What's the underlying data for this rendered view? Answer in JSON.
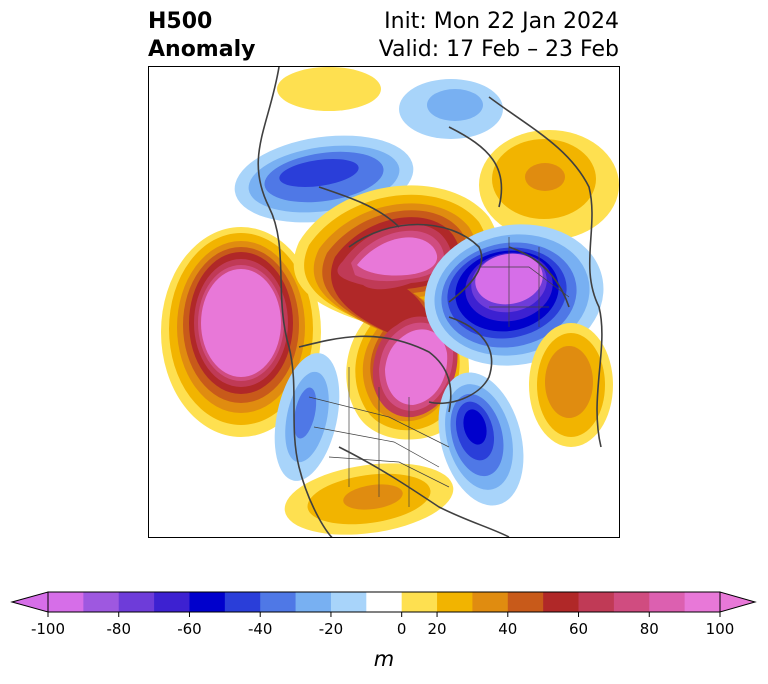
{
  "header": {
    "title_line1": "H500",
    "title_line2": "Anomaly",
    "init_text": "Init: Mon 22 Jan 2024",
    "valid_text": "Valid: 17 Feb – 23 Feb"
  },
  "map": {
    "projection": "polar-stereographic",
    "variable": "500 hPa geopotential height anomaly"
  },
  "colorbar": {
    "unit": "m",
    "ticks": [
      "-100",
      "-80",
      "-60",
      "-40",
      "-20",
      "0",
      "20",
      "40",
      "60",
      "80",
      "100"
    ],
    "levels": [
      -100,
      -90,
      -80,
      -70,
      -60,
      -50,
      -40,
      -30,
      -20,
      -10,
      10,
      20,
      30,
      40,
      50,
      60,
      70,
      80,
      90,
      100
    ],
    "colors": [
      "#d66ee8",
      "#9e58e0",
      "#6e3cd9",
      "#3d21d1",
      "#0000cc",
      "#2a3ed9",
      "#4f78e6",
      "#78b0f2",
      "#a8d4fa",
      "#ffffff",
      "#fee050",
      "#f2b400",
      "#e08c10",
      "#c85a1a",
      "#b02828",
      "#c03a56",
      "#d04c80",
      "#dc60b0",
      "#e878d8"
    ],
    "extend_low_color": "#d66ee8",
    "extend_high_color": "#e878d8"
  }
}
